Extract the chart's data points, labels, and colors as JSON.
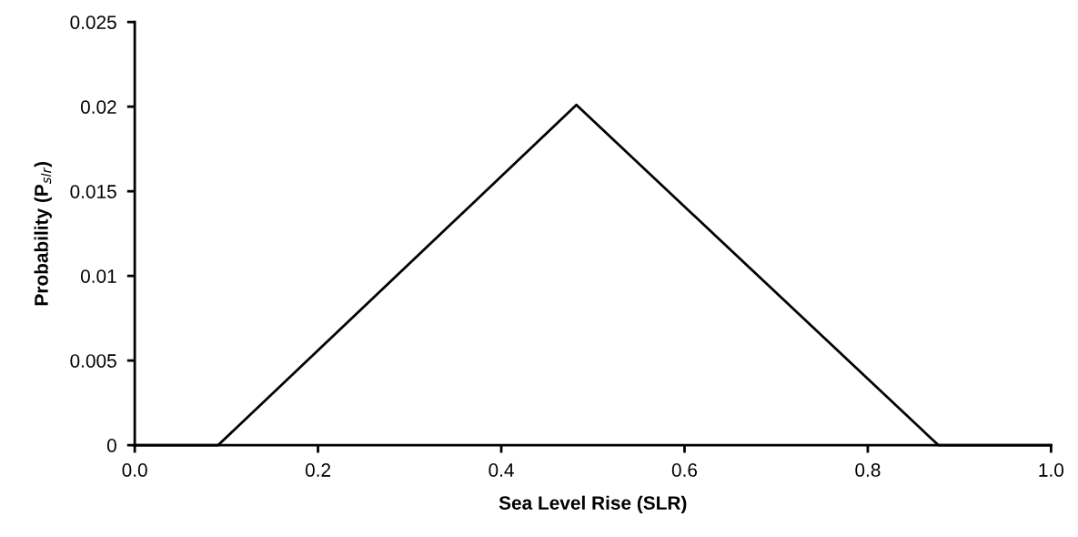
{
  "chart_data": {
    "type": "line",
    "xlabel": "Sea Level Rise (SLR)",
    "ylabel": "Probability (P$_{slr}$)",
    "series": [
      {
        "color": "#000000",
        "x": [
          0.0,
          0.091,
          0.482,
          0.877,
          1.0
        ],
        "values": [
          0,
          0,
          0.0201,
          0,
          0
        ]
      }
    ],
    "xlim": [
      0,
      1
    ],
    "xticks": [
      {
        "value": 0,
        "label": "0.0"
      },
      0.2,
      0.4,
      0.6,
      0.8,
      {
        "value": 1,
        "label": "1.0"
      }
    ],
    "ylim": [
      0,
      0.025
    ],
    "yticks": [
      0,
      0.005,
      0.01,
      0.015,
      0.02,
      0.025
    ],
    "grid": false,
    "marker": "none",
    "line_style": "solid"
  }
}
